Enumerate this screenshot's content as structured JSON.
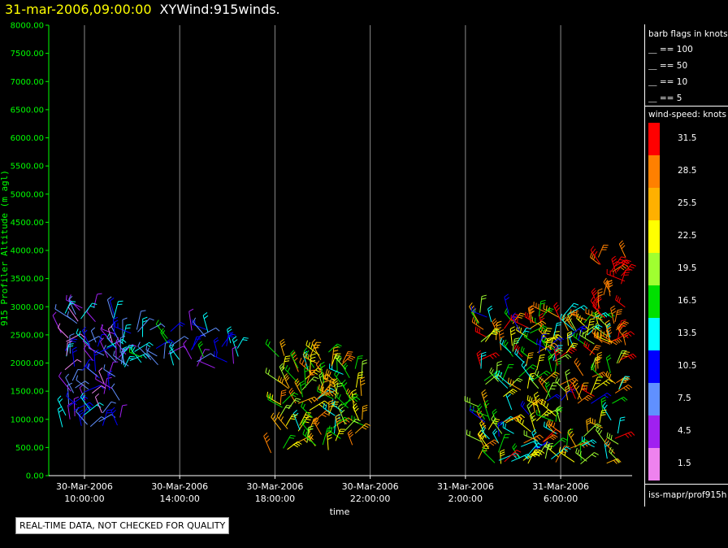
{
  "header": {
    "datetime": "31-mar-2006,09:00:00",
    "title": "XYWind:915winds."
  },
  "chart_data": {
    "type": "scatter",
    "title": "XYWind:915winds.",
    "xlabel": "time",
    "ylabel": "915 Profiler Altitude (m agl)",
    "ylim": [
      0,
      8000
    ],
    "yticks": [
      "0.00",
      "500.00",
      "1000.00",
      "1500.00",
      "2000.00",
      "2500.00",
      "3000.00",
      "3500.00",
      "4000.00",
      "4500.00",
      "5000.00",
      "5500.00",
      "6000.00",
      "6500.00",
      "7000.00",
      "7500.00",
      "8000.00"
    ],
    "xticks": [
      {
        "date": "30-Mar-2006",
        "time": "10:00:00"
      },
      {
        "date": "30-Mar-2006",
        "time": "14:00:00"
      },
      {
        "date": "30-Mar-2006",
        "time": "18:00:00"
      },
      {
        "date": "30-Mar-2006",
        "time": "22:00:00"
      },
      {
        "date": "31-Mar-2006",
        "time": "2:00:00"
      },
      {
        "date": "31-Mar-2006",
        "time": "6:00:00"
      }
    ],
    "grid": "vertical lines at x ticks",
    "clusters": [
      {
        "time_start": "30-Mar-2006 09:00",
        "time_end": "30-Mar-2006 11:30",
        "alt_min": 800,
        "alt_max": 3000,
        "speed_knots": "1.5-13.5"
      },
      {
        "time_start": "30-Mar-2006 11:30",
        "time_end": "30-Mar-2006 16:30",
        "alt_min": 1900,
        "alt_max": 2600,
        "speed_knots": "4.5-16.5"
      },
      {
        "time_start": "30-Mar-2006 17:50",
        "time_end": "30-Mar-2006 21:50",
        "alt_min": 400,
        "alt_max": 2200,
        "speed_knots": "13.5-28.5"
      },
      {
        "time_start": "31-Mar-2006 02:30",
        "time_end": "31-Mar-2006 08:30",
        "alt_min": 200,
        "alt_max": 2900,
        "speed_knots": "10.5-31.5"
      },
      {
        "time_start": "31-Mar-2006 07:30",
        "time_end": "31-Mar-2006 08:45",
        "alt_min": 2200,
        "alt_max": 3900,
        "speed_knots": "28.5-31.5"
      }
    ]
  },
  "legend": {
    "flags_title": "barb flags in knots",
    "flags": [
      "== 100",
      "== 50",
      "== 10",
      "== 5"
    ],
    "speed_title": "wind-speed: knots",
    "speed_bins": [
      {
        "label": "31.5",
        "color": "#ff0000"
      },
      {
        "label": "28.5",
        "color": "#ff8000"
      },
      {
        "label": "25.5",
        "color": "#ffb000"
      },
      {
        "label": "22.5",
        "color": "#ffff00"
      },
      {
        "label": "19.5",
        "color": "#a0ff30"
      },
      {
        "label": "16.5",
        "color": "#00e000"
      },
      {
        "label": "13.5",
        "color": "#00ffff"
      },
      {
        "label": "10.5",
        "color": "#0000ff"
      },
      {
        "label": "7.5",
        "color": "#6090ff"
      },
      {
        "label": "4.5",
        "color": "#a020f0"
      },
      {
        "label": "1.5",
        "color": "#ee82ee"
      }
    ],
    "source": "iss-mapr/prof915h"
  },
  "footer": {
    "warning": "REAL-TIME DATA, NOT CHECKED FOR QUALITY"
  }
}
